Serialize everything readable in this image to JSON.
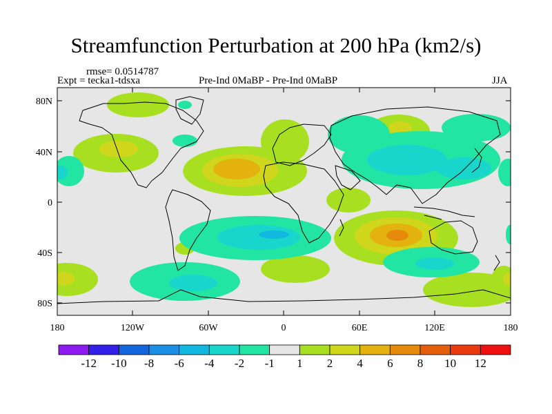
{
  "title": "Streamfunction Perturbation at 200 hPa (km2/s)",
  "rmse": "rmse= 0.0514787",
  "experiment": "Expt = tecka1-tdsxa",
  "comparison": "Pre-Ind 0MaBP - Pre-Ind    0MaBP",
  "season": "JJA",
  "colors": {
    "background_map": "#e8e8e8",
    "neutral": "#e6e6e6"
  },
  "map": {
    "lat_labels": [
      "80N",
      "40N",
      "0",
      "40S",
      "80S"
    ],
    "lon_labels": [
      "180",
      "120W",
      "60W",
      "0",
      "60E",
      "120E",
      "180"
    ],
    "lat_range": [
      -90,
      90
    ],
    "lon_range": [
      -180,
      180
    ]
  },
  "colorbar": {
    "labels": [
      "-12",
      "-10",
      "-8",
      "-6",
      "-4",
      "-2",
      "-1",
      "1",
      "2",
      "4",
      "6",
      "8",
      "10",
      "12"
    ],
    "colors": [
      "#8c1bf0",
      "#3320e8",
      "#1565dd",
      "#1b8fe6",
      "#12b8e0",
      "#19d6cc",
      "#22e4a3",
      "#e6e6e6",
      "#a8e021",
      "#cfd61c",
      "#e3b20f",
      "#e58a0b",
      "#e55e0c",
      "#e93a10",
      "#ee1010"
    ]
  }
}
